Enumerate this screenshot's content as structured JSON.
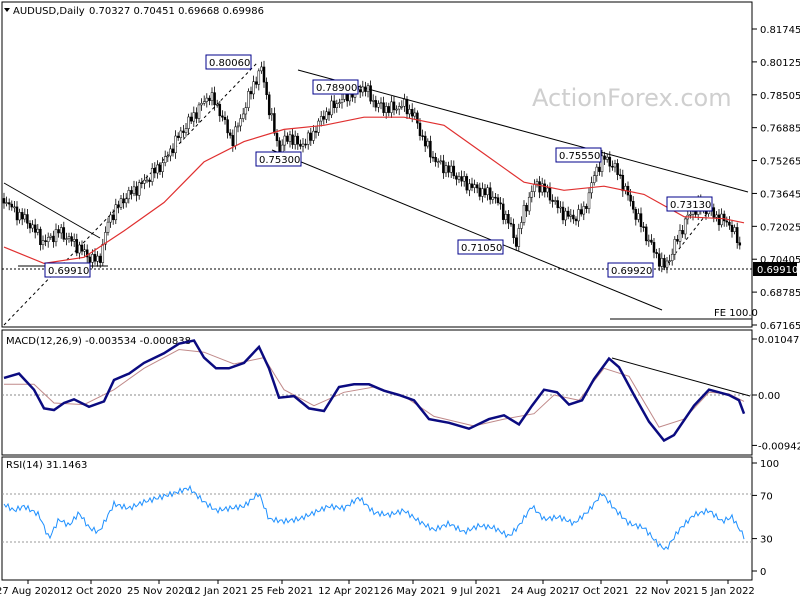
{
  "window": {
    "symbol_header": "AUDUSD,Daily",
    "ohlc": "0.70327 0.70451 0.69668 0.69986",
    "watermark": "ActionForex.com"
  },
  "chart_data": [
    {
      "type": "candlestick",
      "title": "AUDUSD,Daily  0.70327 0.70451 0.69668 0.69986",
      "y_ticks": [
        "0.81745",
        "0.80125",
        "0.78505",
        "0.76885",
        "0.75265",
        "0.73645",
        "0.72025",
        "0.70405",
        "0.68785",
        "0.67165"
      ],
      "ylim": [
        0.6667,
        0.827
      ],
      "current_price_label": "0.69910",
      "price_annotations": [
        "0.80060",
        "0.78900",
        "0.75300",
        "0.75550",
        "0.73130",
        "0.71050",
        "0.69920",
        "0.69910"
      ],
      "fe_label": "FE 100.0",
      "dates_x": [
        "27 Aug 2020",
        "12 Oct 2020",
        "25 Nov 2020",
        "12 Jan 2021",
        "25 Feb 2021",
        "12 Apr 2021",
        "26 May 2021",
        "9 Jul 2021",
        "24 Aug 2021",
        "7 Oct 2021",
        "22 Nov 2021",
        "5 Jan 2022"
      ],
      "price_path": [
        [
          0,
          0.734
        ],
        [
          10,
          0.728
        ],
        [
          25,
          0.722
        ],
        [
          40,
          0.712
        ],
        [
          55,
          0.718
        ],
        [
          70,
          0.712
        ],
        [
          85,
          0.705
        ],
        [
          95,
          0.703
        ],
        [
          105,
          0.724
        ],
        [
          120,
          0.734
        ],
        [
          140,
          0.742
        ],
        [
          160,
          0.752
        ],
        [
          175,
          0.765
        ],
        [
          190,
          0.775
        ],
        [
          205,
          0.785
        ],
        [
          215,
          0.778
        ],
        [
          228,
          0.762
        ],
        [
          238,
          0.775
        ],
        [
          250,
          0.791
        ],
        [
          258,
          0.798
        ],
        [
          265,
          0.778
        ],
        [
          275,
          0.758
        ],
        [
          285,
          0.765
        ],
        [
          295,
          0.76
        ],
        [
          305,
          0.763
        ],
        [
          320,
          0.775
        ],
        [
          335,
          0.782
        ],
        [
          345,
          0.785
        ],
        [
          360,
          0.789
        ],
        [
          372,
          0.78
        ],
        [
          385,
          0.778
        ],
        [
          400,
          0.78
        ],
        [
          410,
          0.775
        ],
        [
          420,
          0.762
        ],
        [
          432,
          0.752
        ],
        [
          445,
          0.748
        ],
        [
          460,
          0.742
        ],
        [
          475,
          0.738
        ],
        [
          490,
          0.735
        ],
        [
          505,
          0.722
        ],
        [
          512,
          0.712
        ],
        [
          520,
          0.728
        ],
        [
          532,
          0.742
        ],
        [
          545,
          0.736
        ],
        [
          556,
          0.728
        ],
        [
          568,
          0.724
        ],
        [
          580,
          0.728
        ],
        [
          592,
          0.748
        ],
        [
          600,
          0.754
        ],
        [
          610,
          0.75
        ],
        [
          620,
          0.74
        ],
        [
          630,
          0.728
        ],
        [
          640,
          0.718
        ],
        [
          650,
          0.708
        ],
        [
          660,
          0.7
        ],
        [
          665,
          0.704
        ],
        [
          675,
          0.716
        ],
        [
          685,
          0.726
        ],
        [
          695,
          0.73
        ],
        [
          705,
          0.728
        ],
        [
          715,
          0.724
        ],
        [
          725,
          0.722
        ],
        [
          735,
          0.712
        ],
        [
          740,
          0.7
        ]
      ],
      "sma_path": [
        [
          0,
          0.71
        ],
        [
          40,
          0.702
        ],
        [
          80,
          0.705
        ],
        [
          120,
          0.718
        ],
        [
          160,
          0.732
        ],
        [
          200,
          0.752
        ],
        [
          240,
          0.762
        ],
        [
          280,
          0.768
        ],
        [
          320,
          0.77
        ],
        [
          360,
          0.774
        ],
        [
          400,
          0.774
        ],
        [
          440,
          0.77
        ],
        [
          480,
          0.756
        ],
        [
          520,
          0.742
        ],
        [
          560,
          0.738
        ],
        [
          600,
          0.74
        ],
        [
          640,
          0.736
        ],
        [
          680,
          0.725
        ],
        [
          720,
          0.724
        ],
        [
          740,
          0.722
        ]
      ]
    },
    {
      "type": "line",
      "title": "MACD(12,26,9) -0.003534 -0.000838",
      "y_ticks": [
        "0.010472",
        "0.00",
        "-0.009426"
      ],
      "zero_line_label": "0.00",
      "macd_path": [
        [
          0,
          0.0032
        ],
        [
          15,
          0.004
        ],
        [
          30,
          0.001
        ],
        [
          40,
          -0.0025
        ],
        [
          50,
          -0.0028
        ],
        [
          60,
          -0.0015
        ],
        [
          70,
          -0.0008
        ],
        [
          85,
          -0.0022
        ],
        [
          100,
          -0.0012
        ],
        [
          110,
          0.0028
        ],
        [
          125,
          0.004
        ],
        [
          140,
          0.006
        ],
        [
          160,
          0.0078
        ],
        [
          175,
          0.0096
        ],
        [
          190,
          0.0102
        ],
        [
          200,
          0.007
        ],
        [
          212,
          0.005
        ],
        [
          225,
          0.005
        ],
        [
          240,
          0.006
        ],
        [
          255,
          0.009
        ],
        [
          265,
          0.005
        ],
        [
          275,
          -0.0005
        ],
        [
          290,
          -0.0002
        ],
        [
          305,
          -0.0025
        ],
        [
          320,
          -0.003
        ],
        [
          335,
          0.0015
        ],
        [
          350,
          0.002
        ],
        [
          365,
          0.002
        ],
        [
          380,
          0.0008
        ],
        [
          395,
          0.0
        ],
        [
          410,
          -0.001
        ],
        [
          425,
          -0.0045
        ],
        [
          445,
          -0.0052
        ],
        [
          465,
          -0.0063
        ],
        [
          485,
          -0.0045
        ],
        [
          500,
          -0.0038
        ],
        [
          515,
          -0.0055
        ],
        [
          528,
          -0.002
        ],
        [
          540,
          0.001
        ],
        [
          553,
          0.0005
        ],
        [
          565,
          -0.0018
        ],
        [
          578,
          -0.001
        ],
        [
          590,
          0.003
        ],
        [
          605,
          0.0068
        ],
        [
          615,
          0.0052
        ],
        [
          630,
          0.0
        ],
        [
          645,
          -0.005
        ],
        [
          660,
          -0.0085
        ],
        [
          670,
          -0.0075
        ],
        [
          690,
          -0.002
        ],
        [
          705,
          0.001
        ],
        [
          715,
          0.0005
        ],
        [
          725,
          0.0
        ],
        [
          735,
          -0.001
        ],
        [
          740,
          -0.0035
        ]
      ],
      "signal_path": [
        [
          0,
          0.002
        ],
        [
          30,
          0.002
        ],
        [
          50,
          -0.0015
        ],
        [
          80,
          -0.0018
        ],
        [
          110,
          0.001
        ],
        [
          140,
          0.005
        ],
        [
          175,
          0.0085
        ],
        [
          200,
          0.008
        ],
        [
          230,
          0.0058
        ],
        [
          260,
          0.007
        ],
        [
          280,
          0.001
        ],
        [
          310,
          -0.002
        ],
        [
          340,
          0.0005
        ],
        [
          370,
          0.0015
        ],
        [
          400,
          -0.0002
        ],
        [
          430,
          -0.004
        ],
        [
          470,
          -0.0058
        ],
        [
          500,
          -0.0045
        ],
        [
          530,
          -0.0035
        ],
        [
          550,
          0.0
        ],
        [
          575,
          -0.001
        ],
        [
          600,
          0.005
        ],
        [
          625,
          0.0035
        ],
        [
          655,
          -0.006
        ],
        [
          680,
          -0.0045
        ],
        [
          705,
          0.0005
        ],
        [
          725,
          0.0002
        ],
        [
          740,
          -0.0012
        ]
      ]
    },
    {
      "type": "line",
      "title": "RSI(14) 31.1463",
      "y_ticks": [
        "100",
        "70",
        "30",
        "0"
      ],
      "ylim": [
        0,
        100
      ],
      "rsi_path": [
        [
          0,
          62
        ],
        [
          10,
          56
        ],
        [
          20,
          60
        ],
        [
          35,
          52
        ],
        [
          45,
          30
        ],
        [
          55,
          48
        ],
        [
          65,
          42
        ],
        [
          75,
          54
        ],
        [
          85,
          40
        ],
        [
          95,
          36
        ],
        [
          110,
          62
        ],
        [
          125,
          58
        ],
        [
          140,
          64
        ],
        [
          155,
          68
        ],
        [
          170,
          72
        ],
        [
          185,
          77
        ],
        [
          200,
          64
        ],
        [
          212,
          56
        ],
        [
          225,
          58
        ],
        [
          240,
          60
        ],
        [
          255,
          72
        ],
        [
          265,
          48
        ],
        [
          280,
          46
        ],
        [
          295,
          48
        ],
        [
          310,
          54
        ],
        [
          325,
          60
        ],
        [
          340,
          58
        ],
        [
          355,
          68
        ],
        [
          370,
          54
        ],
        [
          385,
          52
        ],
        [
          400,
          56
        ],
        [
          415,
          46
        ],
        [
          430,
          38
        ],
        [
          445,
          44
        ],
        [
          460,
          36
        ],
        [
          475,
          42
        ],
        [
          490,
          40
        ],
        [
          505,
          32
        ],
        [
          515,
          42
        ],
        [
          528,
          60
        ],
        [
          540,
          48
        ],
        [
          555,
          50
        ],
        [
          570,
          44
        ],
        [
          585,
          56
        ],
        [
          598,
          72
        ],
        [
          610,
          58
        ],
        [
          625,
          44
        ],
        [
          640,
          40
        ],
        [
          655,
          24
        ],
        [
          662,
          20
        ],
        [
          675,
          38
        ],
        [
          690,
          52
        ],
        [
          705,
          56
        ],
        [
          718,
          46
        ],
        [
          728,
          50
        ],
        [
          740,
          32
        ]
      ]
    }
  ]
}
